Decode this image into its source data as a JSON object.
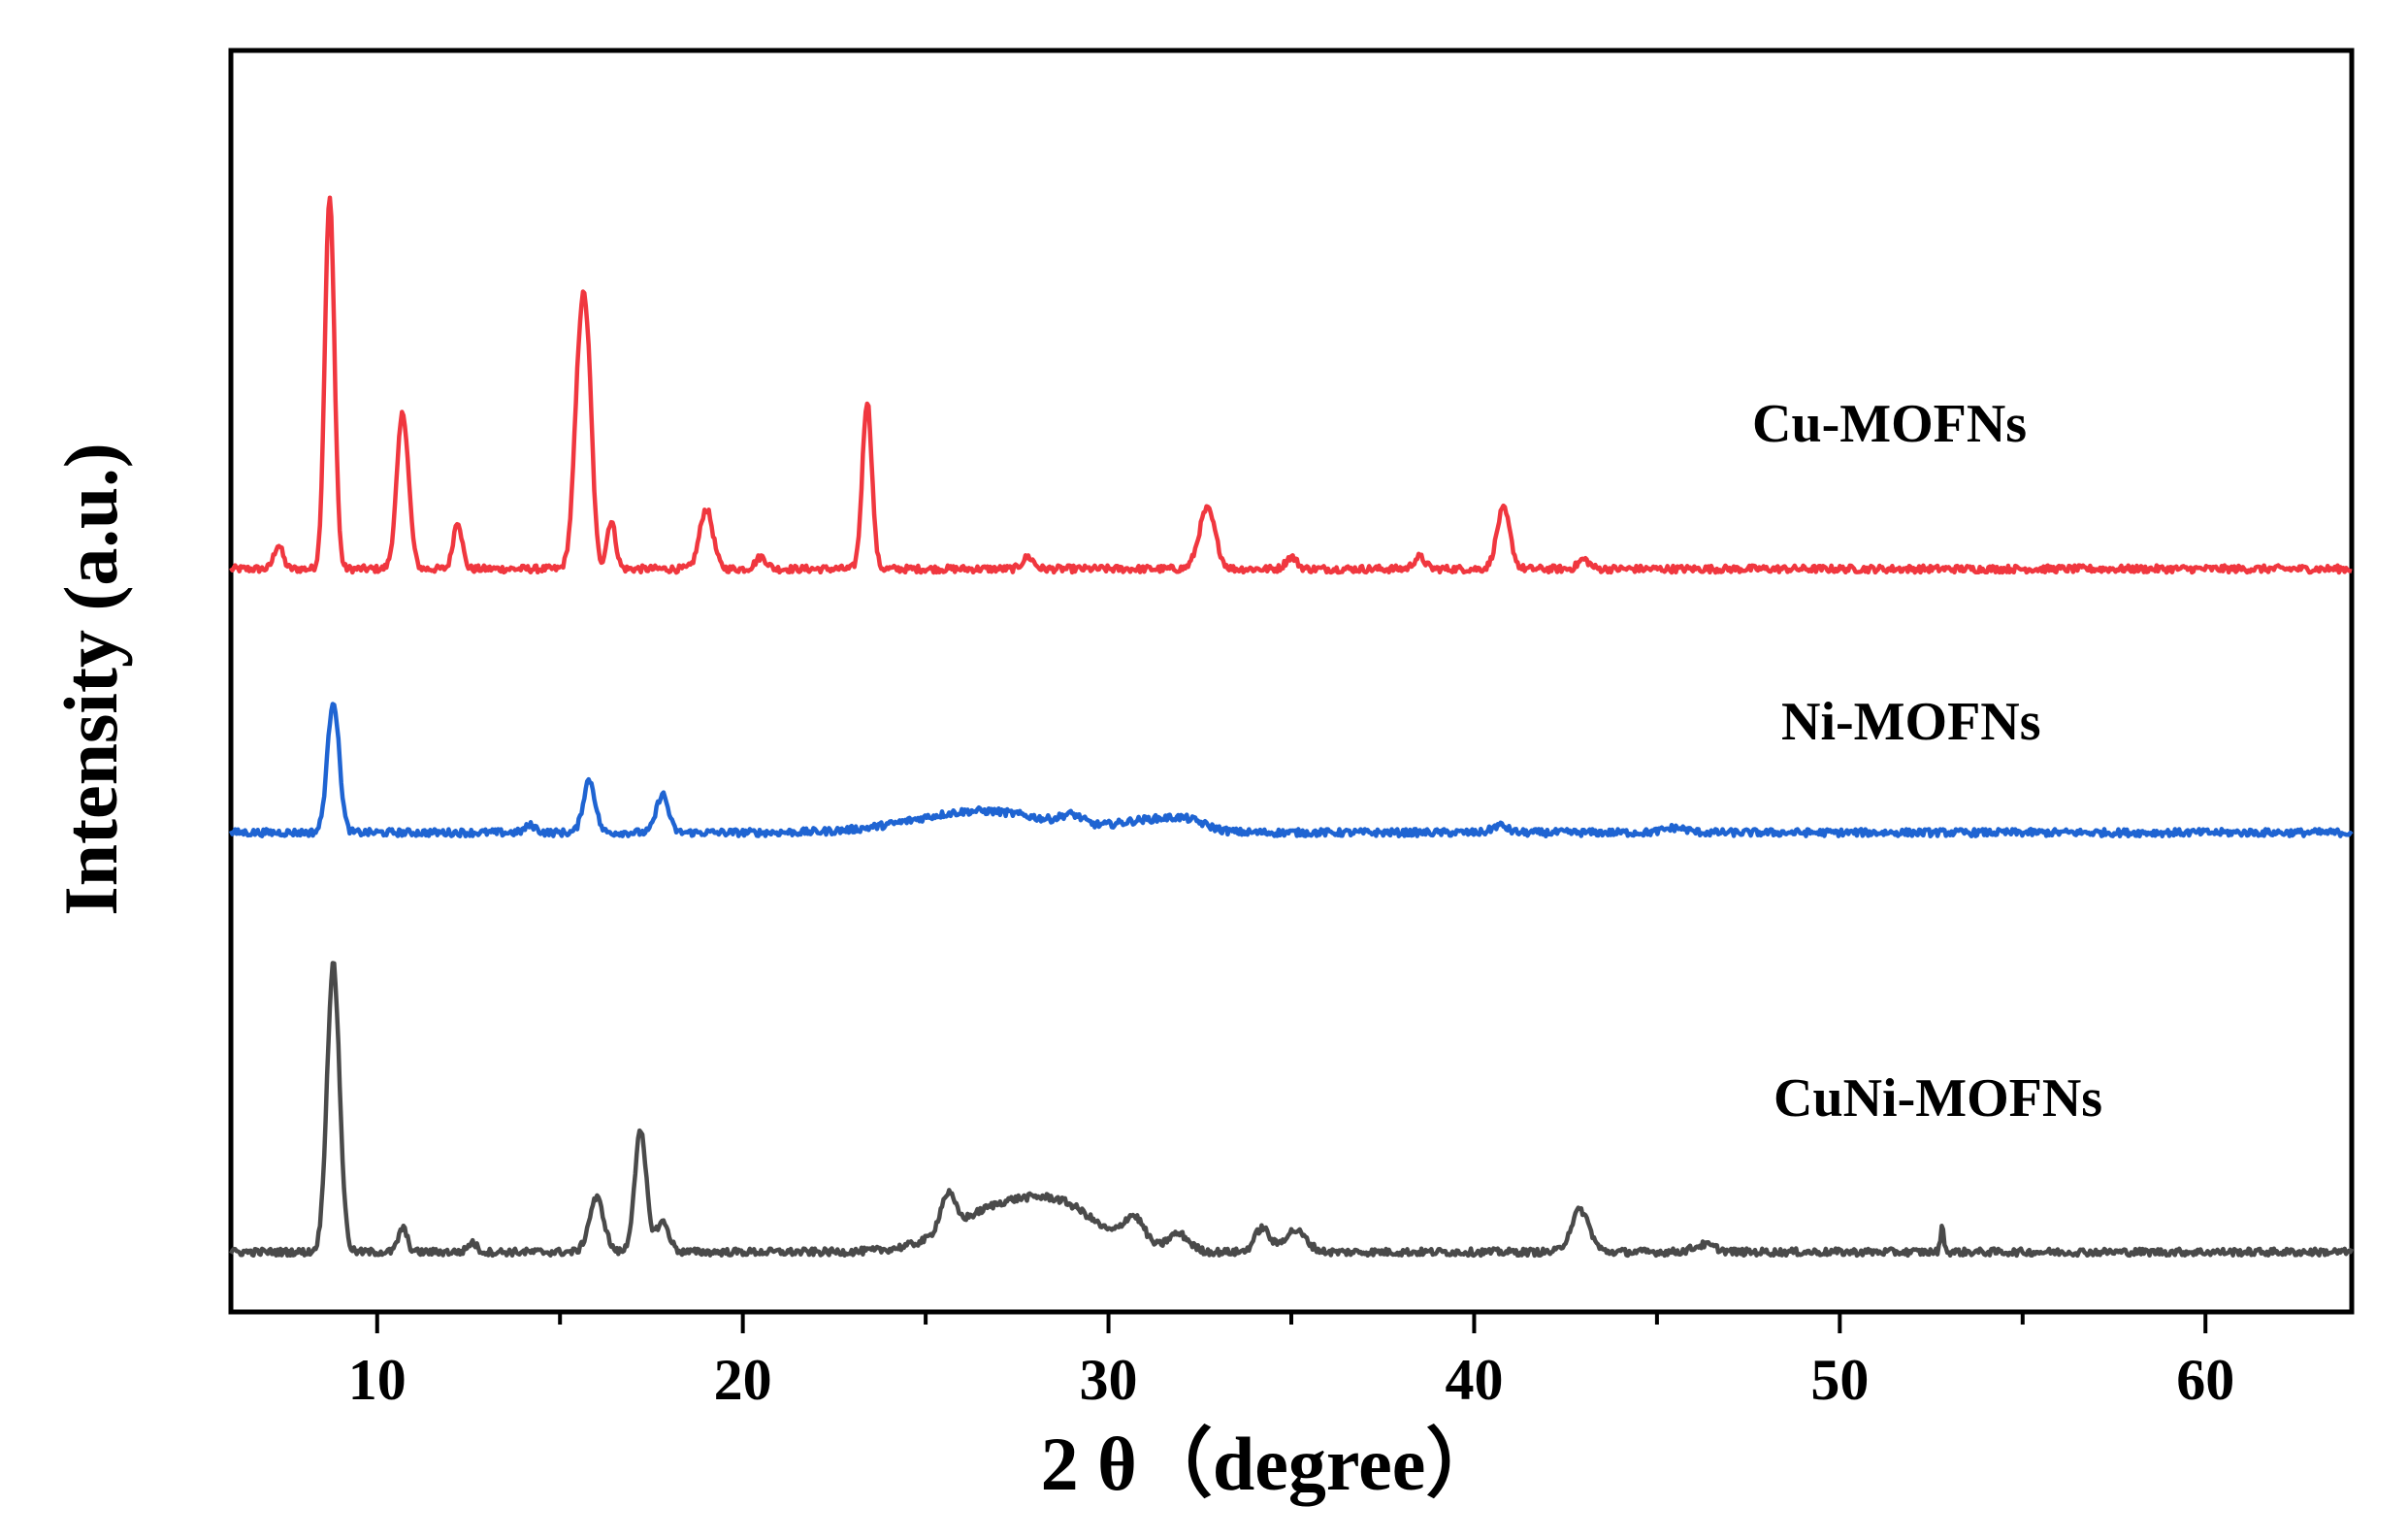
{
  "chart_data": {
    "type": "line",
    "title": "",
    "xlabel": "2 θ（degree）",
    "ylabel": "Intensity (a.u.)",
    "xlim": [
      6,
      64
    ],
    "x_ticks": [
      10,
      20,
      30,
      40,
      50,
      60
    ],
    "y_tick_labels": false,
    "grid": false,
    "legend": "inline labels to the right of each trace",
    "series": [
      {
        "name": "Cu-MOFNs",
        "color": "#f0373f",
        "offset": 0.62,
        "baseline": 0.0,
        "peaks": [
          {
            "x": 7.3,
            "h": 0.02,
            "w": 0.12
          },
          {
            "x": 8.7,
            "h": 0.31,
            "w": 0.13
          },
          {
            "x": 10.7,
            "h": 0.13,
            "w": 0.16
          },
          {
            "x": 12.2,
            "h": 0.04,
            "w": 0.12
          },
          {
            "x": 15.6,
            "h": 0.21,
            "w": 0.18
          },
          {
            "x": 15.8,
            "h": 0.06,
            "w": 0.12
          },
          {
            "x": 16.4,
            "h": 0.04,
            "w": 0.12
          },
          {
            "x": 19.0,
            "h": 0.05,
            "w": 0.18
          },
          {
            "x": 20.5,
            "h": 0.01,
            "w": 0.15
          },
          {
            "x": 23.4,
            "h": 0.14,
            "w": 0.13
          },
          {
            "x": 27.8,
            "h": 0.01,
            "w": 0.15
          },
          {
            "x": 32.7,
            "h": 0.05,
            "w": 0.22
          },
          {
            "x": 35.0,
            "h": 0.01,
            "w": 0.15
          },
          {
            "x": 38.5,
            "h": 0.01,
            "w": 0.15
          },
          {
            "x": 40.8,
            "h": 0.05,
            "w": 0.18
          },
          {
            "x": 43.0,
            "h": 0.008,
            "w": 0.15
          }
        ]
      },
      {
        "name": "Ni-MOFNs",
        "color": "#1f64d2",
        "offset": 0.4,
        "baseline": 0.0,
        "peaks": [
          {
            "x": 8.8,
            "h": 0.11,
            "w": 0.16
          },
          {
            "x": 14.2,
            "h": 0.006,
            "w": 0.15
          },
          {
            "x": 15.8,
            "h": 0.044,
            "w": 0.16
          },
          {
            "x": 17.8,
            "h": 0.032,
            "w": 0.16
          },
          {
            "x": 26.5,
            "h": 0.018,
            "w": 1.8
          },
          {
            "x": 29.0,
            "h": 0.008,
            "w": 0.3
          },
          {
            "x": 31.2,
            "h": 0.01,
            "w": 0.9
          },
          {
            "x": 32.2,
            "h": 0.006,
            "w": 0.5
          },
          {
            "x": 40.7,
            "h": 0.006,
            "w": 0.2
          },
          {
            "x": 45.5,
            "h": 0.004,
            "w": 0.3
          }
        ]
      },
      {
        "name": "CuNi-MOFNs",
        "color": "#4a4a4a",
        "offset": 0.05,
        "baseline": 0.0,
        "peaks": [
          {
            "x": 8.8,
            "h": 0.24,
            "w": 0.17
          },
          {
            "x": 10.7,
            "h": 0.02,
            "w": 0.12
          },
          {
            "x": 12.6,
            "h": 0.008,
            "w": 0.12
          },
          {
            "x": 16.0,
            "h": 0.045,
            "w": 0.2
          },
          {
            "x": 17.2,
            "h": 0.1,
            "w": 0.16
          },
          {
            "x": 17.8,
            "h": 0.025,
            "w": 0.18
          },
          {
            "x": 25.6,
            "h": 0.03,
            "w": 0.2
          },
          {
            "x": 27.3,
            "h": 0.04,
            "w": 1.4
          },
          {
            "x": 29.0,
            "h": 0.02,
            "w": 0.9
          },
          {
            "x": 30.7,
            "h": 0.025,
            "w": 0.3
          },
          {
            "x": 31.9,
            "h": 0.015,
            "w": 0.3
          },
          {
            "x": 34.2,
            "h": 0.02,
            "w": 0.2
          },
          {
            "x": 35.1,
            "h": 0.018,
            "w": 0.3
          },
          {
            "x": 42.9,
            "h": 0.035,
            "w": 0.25
          },
          {
            "x": 46.3,
            "h": 0.006,
            "w": 0.3
          },
          {
            "x": 52.8,
            "h": 0.02,
            "w": 0.05
          }
        ]
      }
    ]
  }
}
